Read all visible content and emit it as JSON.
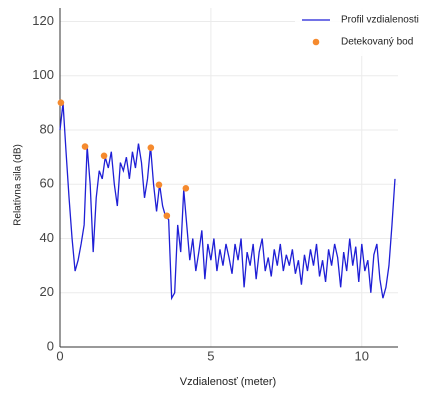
{
  "chart_data": {
    "type": "line",
    "x_label": "Vzdialenosť (meter)",
    "y_label": "Relatívna sila (dB)",
    "xlim": [
      0,
      11.2
    ],
    "ylim": [
      0,
      125
    ],
    "xticks": [
      0,
      5,
      10
    ],
    "yticks": [
      0,
      20,
      40,
      60,
      80,
      100,
      120
    ],
    "grid": true,
    "legend": "top-right",
    "series": [
      {
        "name": "Profil vzdialenosti",
        "type": "line",
        "color": "#1f1fd6",
        "x": [
          0,
          0.1,
          0.2,
          0.3,
          0.4,
          0.5,
          0.6,
          0.7,
          0.8,
          0.9,
          1,
          1.1,
          1.2,
          1.3,
          1.4,
          1.5,
          1.6,
          1.7,
          1.8,
          1.9,
          2,
          2.1,
          2.2,
          2.3,
          2.4,
          2.5,
          2.6,
          2.7,
          2.8,
          2.9,
          3,
          3.1,
          3.2,
          3.3,
          3.4,
          3.5,
          3.6,
          3.7,
          3.8,
          3.9,
          4,
          4.1,
          4.2,
          4.3,
          4.4,
          4.5,
          4.6,
          4.7,
          4.8,
          4.9,
          5,
          5.1,
          5.2,
          5.3,
          5.4,
          5.5,
          5.6,
          5.7,
          5.8,
          5.9,
          6,
          6.1,
          6.2,
          6.3,
          6.4,
          6.5,
          6.6,
          6.7,
          6.8,
          6.9,
          7,
          7.1,
          7.2,
          7.3,
          7.4,
          7.5,
          7.6,
          7.7,
          7.8,
          7.9,
          8,
          8.1,
          8.2,
          8.3,
          8.4,
          8.5,
          8.6,
          8.7,
          8.8,
          8.9,
          9,
          9.1,
          9.2,
          9.3,
          9.4,
          9.5,
          9.6,
          9.7,
          9.8,
          9.9,
          10,
          10.1,
          10.2,
          10.3,
          10.4,
          10.5,
          10.6,
          10.7,
          10.8,
          10.9,
          11,
          11.1
        ],
        "values": [
          80,
          90,
          72,
          55,
          40,
          28,
          32,
          38,
          45,
          74,
          60,
          35,
          55,
          65,
          62,
          70,
          66,
          72,
          60,
          52,
          68,
          65,
          70,
          62,
          72,
          66,
          75,
          68,
          55,
          62,
          74,
          60,
          50,
          60,
          52,
          48,
          47,
          18,
          20,
          45,
          35,
          58,
          45,
          32,
          40,
          28,
          35,
          43,
          25,
          38,
          32,
          40,
          28,
          36,
          30,
          38,
          33,
          27,
          38,
          32,
          40,
          22,
          35,
          30,
          38,
          25,
          35,
          40,
          28,
          33,
          26,
          36,
          30,
          38,
          28,
          34,
          30,
          36,
          27,
          32,
          23,
          34,
          28,
          36,
          30,
          38,
          26,
          32,
          24,
          36,
          30,
          38,
          33,
          22,
          35,
          28,
          40,
          30,
          37,
          24,
          38,
          28,
          32,
          20,
          34,
          38,
          25,
          18,
          22,
          30,
          45,
          62
        ]
      },
      {
        "name": "Detekovaný bod",
        "type": "scatter",
        "color": "#f58a2e",
        "x": [
          0.03,
          0.83,
          1.46,
          3.01,
          3.28,
          3.54,
          4.17
        ],
        "values": [
          90.1,
          73.9,
          70.5,
          73.5,
          59.8,
          48.4,
          58.5
        ]
      }
    ]
  }
}
